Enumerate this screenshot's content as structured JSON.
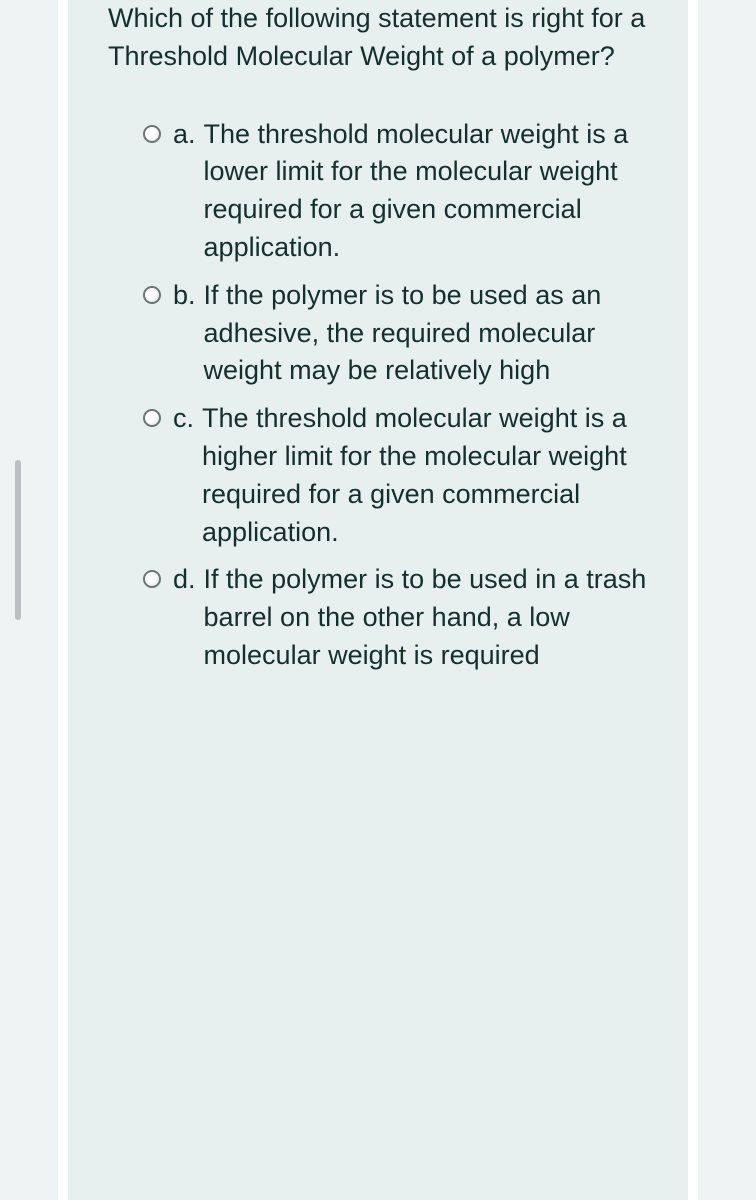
{
  "question": "Which of the following statement is right for a Threshold Molecular Weight of a polymer?",
  "options": [
    {
      "letter": "a.",
      "text": "The threshold molecular weight is a lower limit for the molecular weight required for a given commercial application."
    },
    {
      "letter": "b.",
      "text": "If the polymer is to be used as an adhesive, the required molecular weight may be relatively high"
    },
    {
      "letter": "c.",
      "text": "The threshold molecular weight is a higher limit for the molecular weight required for a given commercial application."
    },
    {
      "letter": "d.",
      "text": "If the polymer is to be used in a trash barrel on the other hand, a low molecular weight is required"
    }
  ],
  "colors": {
    "page_background": "#eef3f4",
    "card_background": "#e7f0ef",
    "text_color": "#152e2e",
    "radio_border": "#6b7575",
    "card_border": "#ffffff",
    "scrollbar": "#b8c0c2"
  },
  "typography": {
    "font_size": 27,
    "line_height": 1.4
  }
}
